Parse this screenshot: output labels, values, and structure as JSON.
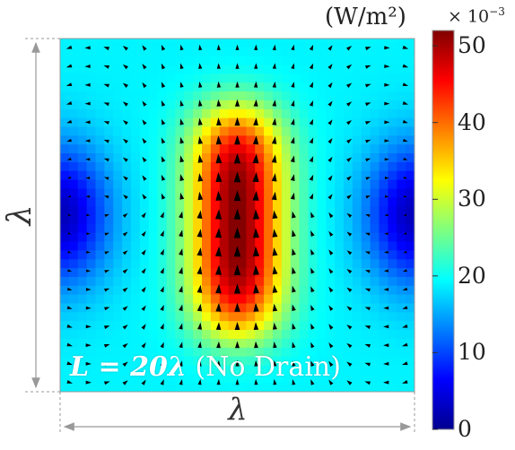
{
  "chart_data": {
    "type": "heatmap",
    "title": "",
    "colorbar": {
      "unit_label": "(W/m²)",
      "multiplier_prefix": "× 10",
      "multiplier_exponent": "−3",
      "ticks": [
        {
          "value": 0,
          "label": "0"
        },
        {
          "value": 10,
          "label": "10"
        },
        {
          "value": 20,
          "label": "20"
        },
        {
          "value": 30,
          "label": "30"
        },
        {
          "value": 40,
          "label": "40"
        },
        {
          "value": 50,
          "label": "50"
        }
      ],
      "range": [
        0,
        52
      ],
      "colormap": "jet"
    },
    "field": {
      "max_value": 52,
      "min_value": 2,
      "hot_spot": "center",
      "cold_spots": [
        "left-edge",
        "right-edge"
      ],
      "vector_direction": "upward in center, curling outward near top and bottom"
    },
    "panel_label": {
      "equation": "L = 20λ",
      "note": " (No Drain)"
    },
    "axis_labels": {
      "vertical": "λ",
      "horizontal": "λ"
    }
  }
}
